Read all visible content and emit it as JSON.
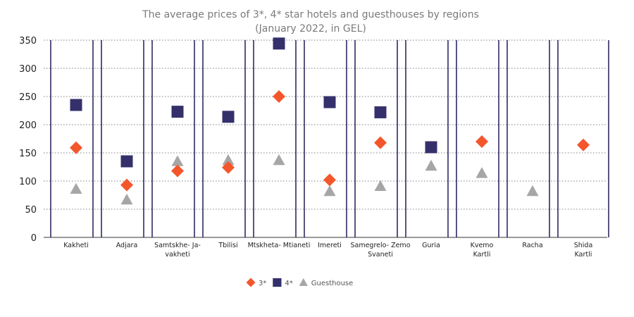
{
  "chart_data": {
    "type": "scatter",
    "title": "The average prices of 3*, 4* star hotels and guesthouses by regions",
    "subtitle": "(January 2022, in GEL)",
    "xlabel": "",
    "ylabel": "",
    "ylim": [
      0,
      350
    ],
    "yticks": [
      0,
      50,
      100,
      150,
      200,
      250,
      300,
      350
    ],
    "grid": true,
    "legend_position": "bottom",
    "categories": [
      [
        "Kakheti"
      ],
      [
        "Adjara"
      ],
      [
        "Samtskhe- Ja-",
        "vakheti"
      ],
      [
        "Tbilisi"
      ],
      [
        "Mtskheta- Mtianeti"
      ],
      [
        "Imereti"
      ],
      [
        "Samegrelo- Zemo",
        "Svaneti"
      ],
      [
        "Guria"
      ],
      [
        "Kvemo",
        "Kartli"
      ],
      [
        "Racha"
      ],
      [
        "Shida",
        "Kartli"
      ]
    ],
    "series": [
      {
        "name": "3*",
        "marker": "diamond",
        "color": "#f4562c",
        "values": [
          159,
          93,
          118,
          124,
          250,
          102,
          168,
          null,
          170,
          null,
          164
        ]
      },
      {
        "name": "4*",
        "marker": "square",
        "color": "#34306b",
        "values": [
          235,
          135,
          223,
          214,
          344,
          240,
          222,
          160,
          null,
          null,
          null
        ]
      },
      {
        "name": "Guesthouse",
        "marker": "triangle",
        "color": "#a6a6a6",
        "values": [
          86,
          67,
          135,
          137,
          137,
          82,
          91,
          127,
          114,
          82,
          null
        ]
      }
    ]
  }
}
